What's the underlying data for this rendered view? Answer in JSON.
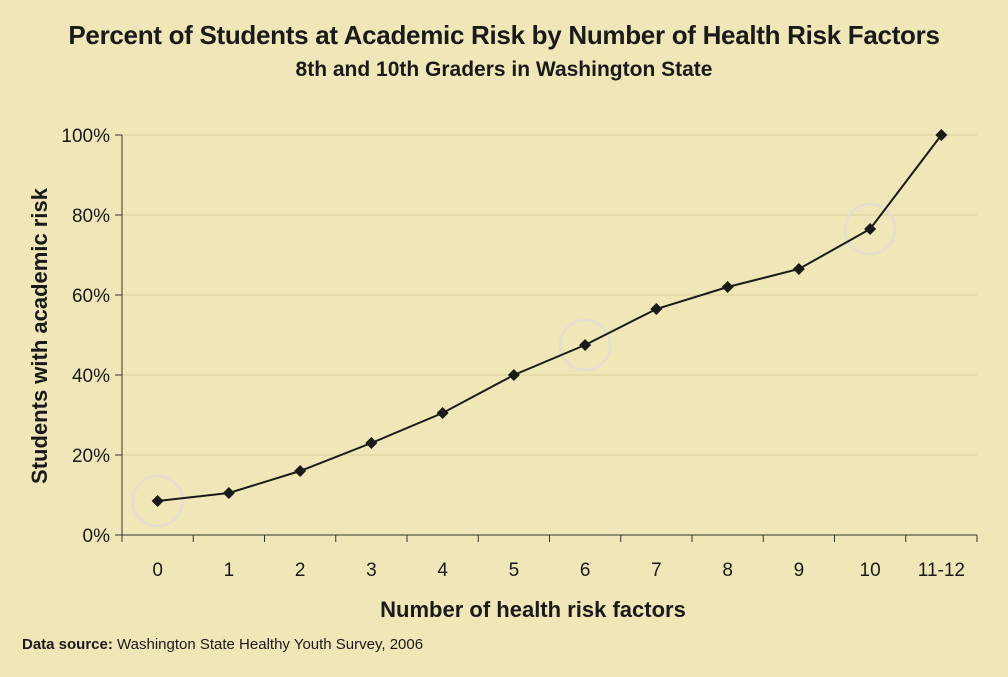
{
  "chart_data": {
    "type": "line",
    "title": "Percent of Students at Academic Risk by Number of Health Risk Factors",
    "subtitle": "8th and 10th Graders in Washington State",
    "xlabel": "Number of health risk factors",
    "ylabel": "Students with academic risk",
    "categories": [
      "0",
      "1",
      "2",
      "3",
      "4",
      "5",
      "6",
      "7",
      "8",
      "9",
      "10",
      "11-12"
    ],
    "values": [
      8.5,
      10.5,
      16,
      23,
      30.5,
      40,
      47.5,
      56.5,
      62,
      66.5,
      76.5,
      100
    ],
    "ylim": [
      0,
      100
    ],
    "yticks": [
      0,
      20,
      40,
      60,
      80,
      100
    ],
    "ytick_labels": [
      "0%",
      "20%",
      "40%",
      "60%",
      "80%",
      "100%"
    ],
    "highlighted_categories": [
      "0",
      "6",
      "10"
    ],
    "grid": true,
    "colors": {
      "line": "#1a1a1a",
      "grid": "#d9cf9a",
      "background": "#efe7b7",
      "highlight": "#e4dfd0"
    }
  },
  "source": {
    "label": "Data source:",
    "text": "Washington State Healthy Youth Survey, 2006"
  }
}
